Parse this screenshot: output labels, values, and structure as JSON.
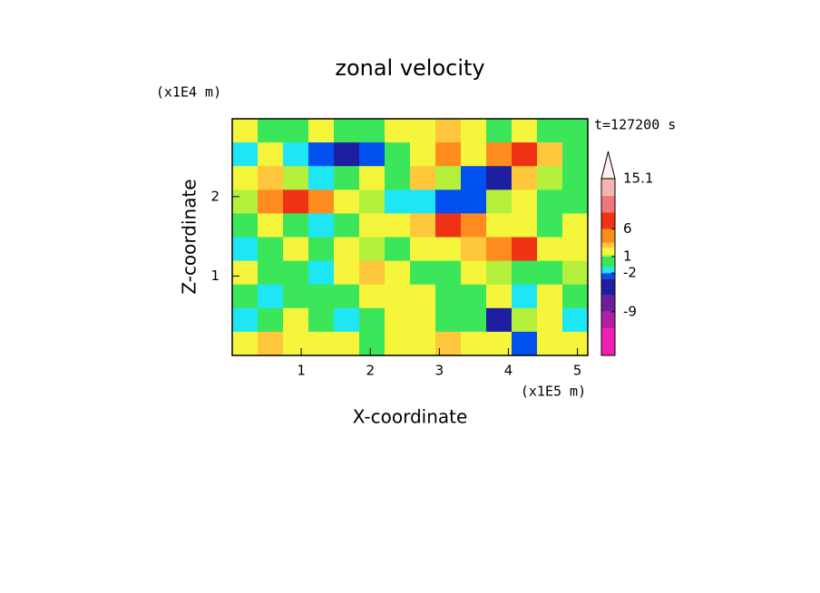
{
  "chart_data": {
    "type": "filled-contour",
    "title": "zonal velocity",
    "xlabel": "X-coordinate",
    "ylabel": "Z-coordinate",
    "xunit": "(x1E5 m)",
    "yunit": "(x1E4 m)",
    "annotation": "t=127200 s",
    "xlim": [
      0,
      5.15
    ],
    "ylim": [
      0,
      2.98
    ],
    "xticks": [
      1,
      2,
      3,
      4,
      5
    ],
    "yticks": [
      1,
      2
    ],
    "z": [
      [
        1.5,
        0.5,
        0.5,
        1.5,
        0.5,
        0.5,
        2,
        1.5,
        3,
        2,
        0.5,
        1.5,
        0.5,
        0.5
      ],
      [
        -1.5,
        2,
        -1.5,
        -2.5,
        -5,
        -2.5,
        0.5,
        2,
        5,
        2,
        4,
        6,
        3,
        0.5
      ],
      [
        2,
        3,
        1,
        -1.5,
        0.5,
        2,
        0.5,
        3,
        1,
        -2.5,
        -5,
        3,
        1,
        0.5
      ],
      [
        1,
        4,
        6,
        4,
        2,
        1,
        -1.5,
        -1.5,
        -2.5,
        -2.5,
        1,
        1.5,
        0.5,
        0.5
      ],
      [
        0.5,
        2,
        0.5,
        -1.5,
        0.5,
        2,
        1.5,
        3,
        6,
        4,
        2,
        1.5,
        0.5,
        2
      ],
      [
        -1.5,
        0.5,
        1.5,
        0.5,
        2,
        1,
        0.5,
        1.5,
        2,
        3,
        5,
        6,
        2,
        1.5
      ],
      [
        1.5,
        0.5,
        0.5,
        -1.5,
        2,
        3,
        2,
        0.5,
        0.5,
        2,
        1,
        0.5,
        0.5,
        1
      ],
      [
        0.5,
        -1.5,
        0.5,
        0.5,
        0.5,
        2,
        2,
        2,
        0.5,
        0.5,
        1.5,
        -1.5,
        1.5,
        0.5
      ],
      [
        -1.5,
        0.5,
        2,
        0.5,
        -1.5,
        0.5,
        2,
        2,
        0.5,
        0.5,
        -5,
        1,
        2,
        -1.5
      ],
      [
        2,
        3,
        2,
        2,
        1.5,
        0.5,
        2,
        2,
        3,
        2,
        2,
        -2.5,
        2,
        1.5
      ]
    ],
    "levels": [
      -16.9,
      -12,
      -9,
      -6,
      -3,
      -2,
      -1,
      1,
      1.3,
      2.6,
      3.5,
      6,
      9,
      12,
      15.1
    ],
    "colors": [
      "#f01eb4",
      "#b41ea5",
      "#6e1e9a",
      "#1e1ea0",
      "#0050f0",
      "#1ee6f5",
      "#3ce65a",
      "#b4f03c",
      "#f5f53c",
      "#ffc83c",
      "#ff8c1e",
      "#f03214",
      "#f07878",
      "#f5b4b4"
    ],
    "extend_color": "#fff0f0",
    "colorbar_ticks": [
      15.1,
      6,
      1,
      -2,
      -9
    ]
  }
}
